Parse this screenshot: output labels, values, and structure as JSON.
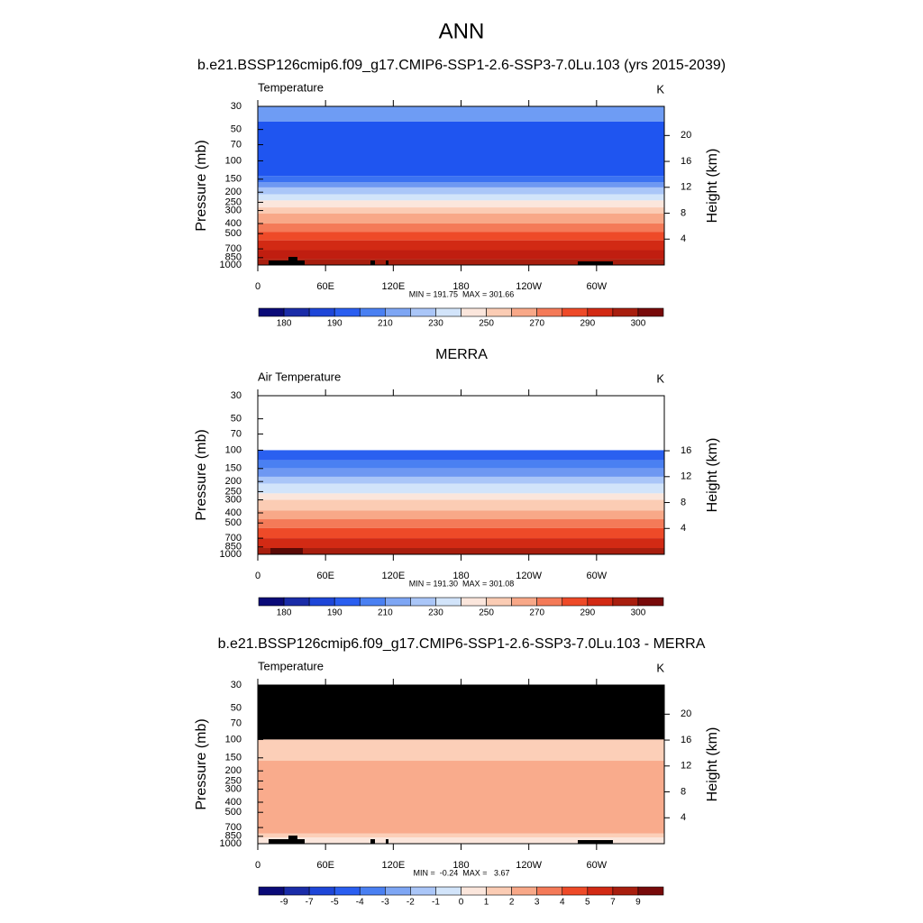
{
  "title": "ANN",
  "chart_data": [
    {
      "type": "contour",
      "title": "b.e21.BSSP126cmip6.f09_g17.CMIP6-SSP1-2.6-SSP3-7.0Lu.103 (yrs 2015-2039)",
      "left_label": "Temperature",
      "right_label": "K",
      "y_label": "Pressure (mb)",
      "y2_label": "Height (km)",
      "xlim": [
        0,
        360
      ],
      "xticks": [
        0,
        {
          "value": 60,
          "label": "60E"
        },
        {
          "value": 120,
          "label": "120E"
        },
        180,
        {
          "value": 240,
          "label": "120W"
        },
        {
          "value": 300,
          "label": "60W"
        }
      ],
      "ylim": [
        30,
        1000
      ],
      "log_scale": true,
      "yticks": [
        30,
        50,
        70,
        100,
        150,
        200,
        250,
        300,
        400,
        500,
        700,
        850,
        1000
      ],
      "y2lim": [
        0,
        24.5
      ],
      "y2ticks": [
        20,
        16,
        12,
        8,
        4
      ],
      "layers": {
        "bounds": [
          30,
          42,
          140,
          160,
          180,
          210,
          240,
          280,
          320,
          400,
          480,
          580,
          720,
          880,
          1000
        ],
        "colors": [
          "#6e9cf4",
          "#1f55f0",
          "#3b72f2",
          "#6e98f2",
          "#aac6f8",
          "#d2e4fa",
          "#fbe6dc",
          "#fbccb4",
          "#f8a888",
          "#f47a58",
          "#ee4a28",
          "#d22a14",
          "#c01e10",
          "#a81e0e"
        ]
      },
      "stats": "MIN = 191.75  MAX = 301.66",
      "colorbar": {
        "colors": [
          "#0a0a78",
          "#1a2ca8",
          "#1e46d8",
          "#2a5ef0",
          "#4a80f2",
          "#7ea6f4",
          "#aac6f8",
          "#d2e4fa",
          "#fbe6dc",
          "#fbccb4",
          "#f8a888",
          "#f47a58",
          "#ee4a28",
          "#d22a14",
          "#a81e0e",
          "#780a0a"
        ],
        "labels": [
          180,
          190,
          210,
          230,
          250,
          270,
          290,
          300
        ]
      }
    },
    {
      "type": "contour",
      "title": "MERRA",
      "left_label": "Air Temperature",
      "right_label": "K",
      "y_label": "Pressure (mb)",
      "y2_label": "Height (km)",
      "xlim": [
        0,
        360
      ],
      "xticks": [
        0,
        {
          "value": 60,
          "label": "60E"
        },
        {
          "value": 120,
          "label": "120E"
        },
        180,
        {
          "value": 240,
          "label": "120W"
        },
        {
          "value": 300,
          "label": "60W"
        }
      ],
      "ylim": [
        30,
        1000
      ],
      "log_scale": true,
      "yticks": [
        30,
        50,
        70,
        100,
        150,
        200,
        250,
        300,
        400,
        500,
        700,
        850,
        1000
      ],
      "y2lim": [
        0,
        24.5
      ],
      "y2ticks": [
        16,
        12,
        8,
        4
      ],
      "layers": {
        "bounds": [
          100,
          125,
          150,
          180,
          210,
          260,
          300,
          380,
          460,
          560,
          700,
          870,
          1000
        ],
        "colors": [
          "#2a60f0",
          "#4a80f2",
          "#6e98f2",
          "#aac6f8",
          "#d2e4fa",
          "#fbe6dc",
          "#fbccb4",
          "#f8a888",
          "#f47a58",
          "#ee4a28",
          "#d22a14",
          "#a81e0e"
        ]
      },
      "stats": "MIN = 191.30  MAX = 301.08",
      "colorbar": {
        "colors": [
          "#0a0a78",
          "#1a2ca8",
          "#1e46d8",
          "#2a5ef0",
          "#4a80f2",
          "#7ea6f4",
          "#aac6f8",
          "#d2e4fa",
          "#fbe6dc",
          "#fbccb4",
          "#f8a888",
          "#f47a58",
          "#ee4a28",
          "#d22a14",
          "#a81e0e",
          "#780a0a"
        ],
        "labels": [
          180,
          190,
          210,
          230,
          250,
          270,
          290,
          300
        ]
      }
    },
    {
      "type": "contour",
      "title": "b.e21.BSSP126cmip6.f09_g17.CMIP6-SSP1-2.6-SSP3-7.0Lu.103 - MERRA",
      "left_label": "Temperature",
      "right_label": "K",
      "y_label": "Pressure (mb)",
      "y2_label": "Height (km)",
      "xlim": [
        0,
        360
      ],
      "xticks": [
        0,
        {
          "value": 60,
          "label": "60E"
        },
        {
          "value": 120,
          "label": "120E"
        },
        180,
        {
          "value": 240,
          "label": "120W"
        },
        {
          "value": 300,
          "label": "60W"
        }
      ],
      "ylim": [
        30,
        1000
      ],
      "log_scale": true,
      "yticks": [
        30,
        50,
        70,
        100,
        150,
        200,
        250,
        300,
        400,
        500,
        700,
        850,
        1000
      ],
      "y2lim": [
        0,
        24.5
      ],
      "y2ticks": [
        20,
        16,
        12,
        8,
        4
      ],
      "layers": {
        "bounds": [
          30,
          100,
          160,
          800,
          870,
          1000
        ],
        "colors": [
          "#000000",
          "#fccfb8",
          "#f9ab8c",
          "#fccfb8",
          "#fbe6dc"
        ]
      },
      "stats": "MIN =  -0.24  MAX =   3.67",
      "colorbar": {
        "colors": [
          "#0a0a78",
          "#1a2ca8",
          "#1e46d8",
          "#2a5ef0",
          "#4a80f2",
          "#7ea6f4",
          "#aac6f8",
          "#d2e4fa",
          "#fbe6dc",
          "#fbccb4",
          "#f8a888",
          "#f47a58",
          "#ee4a28",
          "#d22a14",
          "#a81e0e",
          "#780a0a"
        ],
        "labels": [
          -9,
          -7,
          -5,
          -4,
          -3,
          -2,
          -1,
          0,
          1,
          2,
          3,
          4,
          5,
          7,
          9
        ]
      }
    }
  ]
}
